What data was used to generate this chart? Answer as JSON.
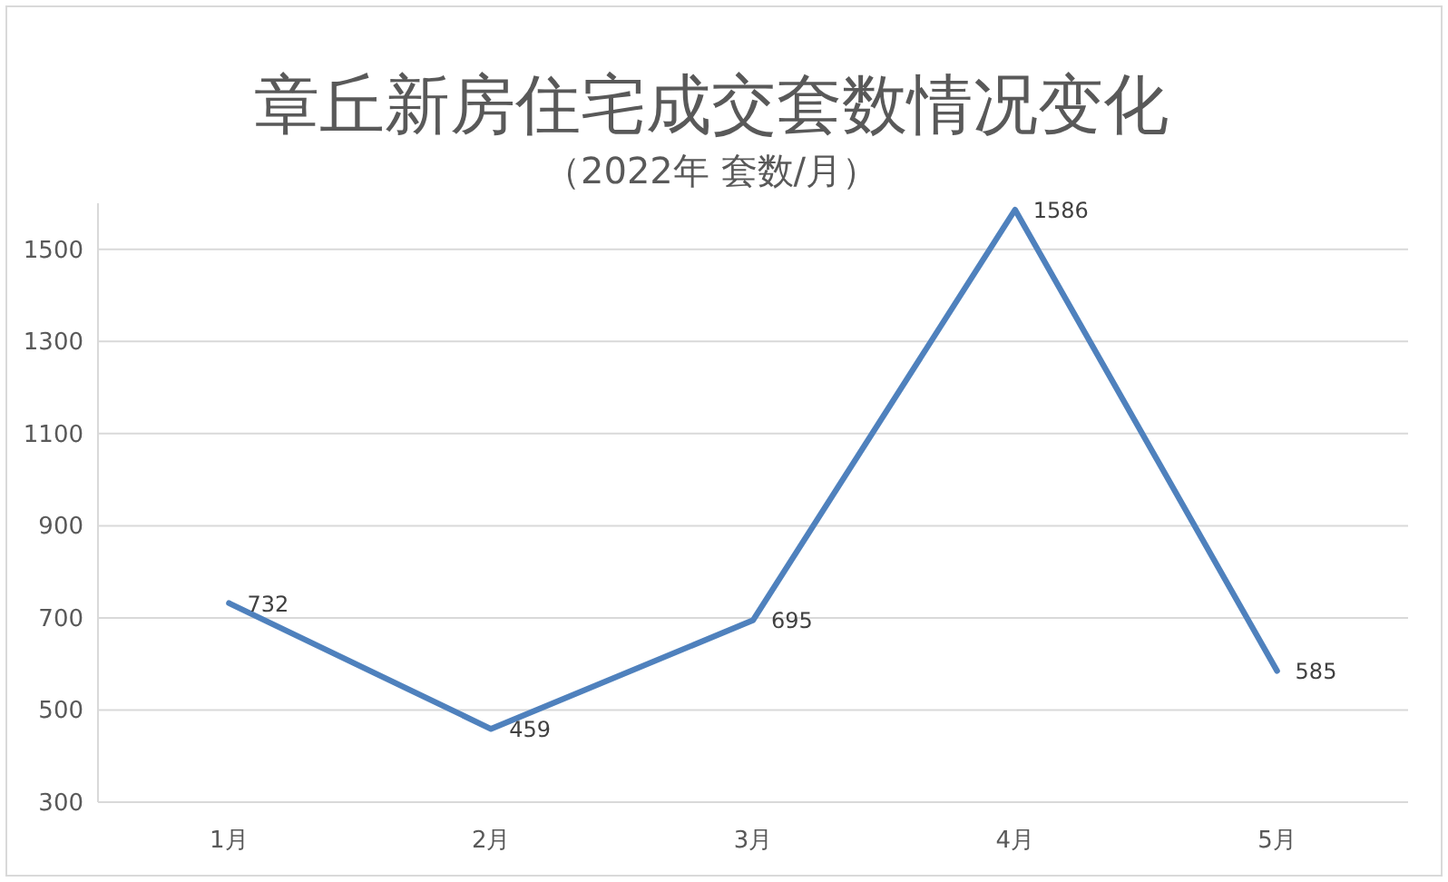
{
  "chart_data": {
    "type": "line",
    "title": "章丘新房住宅成交套数情况变化",
    "subtitle": "（2022年 套数/月）",
    "categories": [
      "1月",
      "2月",
      "3月",
      "4月",
      "5月"
    ],
    "series": [
      {
        "color": "#4f81bd",
        "values": [
          732,
          459,
          695,
          1586,
          585
        ]
      }
    ],
    "ylim": [
      300,
      1600
    ],
    "yticks": [
      300,
      500,
      700,
      900,
      1100,
      1300,
      1500
    ],
    "grid": "y",
    "data_labels": true,
    "marker": "none",
    "line_style": "solid"
  }
}
